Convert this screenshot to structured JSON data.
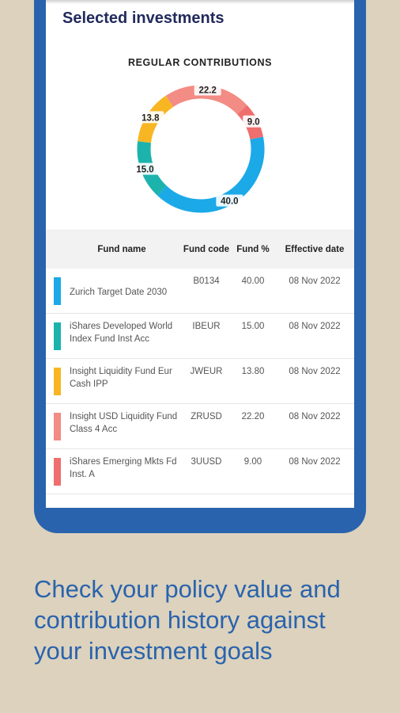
{
  "section_title": "Selected investments",
  "chart_data": {
    "type": "pie",
    "title": "REGULAR CONTRIBUTIONS",
    "slices": [
      {
        "label": "40.0",
        "value": 40.0,
        "color": "#1ba9e8"
      },
      {
        "label": "15.0",
        "value": 15.0,
        "color": "#1cb3ad"
      },
      {
        "label": "13.8",
        "value": 13.8,
        "color": "#f8b623"
      },
      {
        "label": "22.2",
        "value": 22.2,
        "color": "#f28c84"
      },
      {
        "label": "9.0",
        "value": 9.0,
        "color": "#ef6e6e"
      }
    ]
  },
  "table": {
    "headers": {
      "name": "Fund name",
      "code": "Fund code",
      "pct": "Fund %",
      "date": "Effective date"
    },
    "rows": [
      {
        "name": "Zurich Target Date 2030",
        "code": "B0134",
        "pct": "40.00",
        "date": "08 Nov 2022",
        "color": "#1ba9e8"
      },
      {
        "name": "iShares Developed World Index Fund Inst Acc",
        "code": "IBEUR",
        "pct": "15.00",
        "date": "08 Nov 2022",
        "color": "#1cb3ad"
      },
      {
        "name": "Insight Liquidity Fund Eur Cash IPP",
        "code": "JWEUR",
        "pct": "13.80",
        "date": "08 Nov 2022",
        "color": "#f8b623"
      },
      {
        "name": "Insight USD Liquidity Fund Class 4 Acc",
        "code": "ZRUSD",
        "pct": "22.20",
        "date": "08 Nov 2022",
        "color": "#f28c84"
      },
      {
        "name": "iShares Emerging Mkts Fd Inst. A",
        "code": "3UUSD",
        "pct": "9.00",
        "date": "08 Nov 2022",
        "color": "#ef6e6e"
      }
    ]
  },
  "caption": {
    "lines": [
      "Check your policy value and",
      "contribution history against",
      "your investment goals"
    ]
  }
}
